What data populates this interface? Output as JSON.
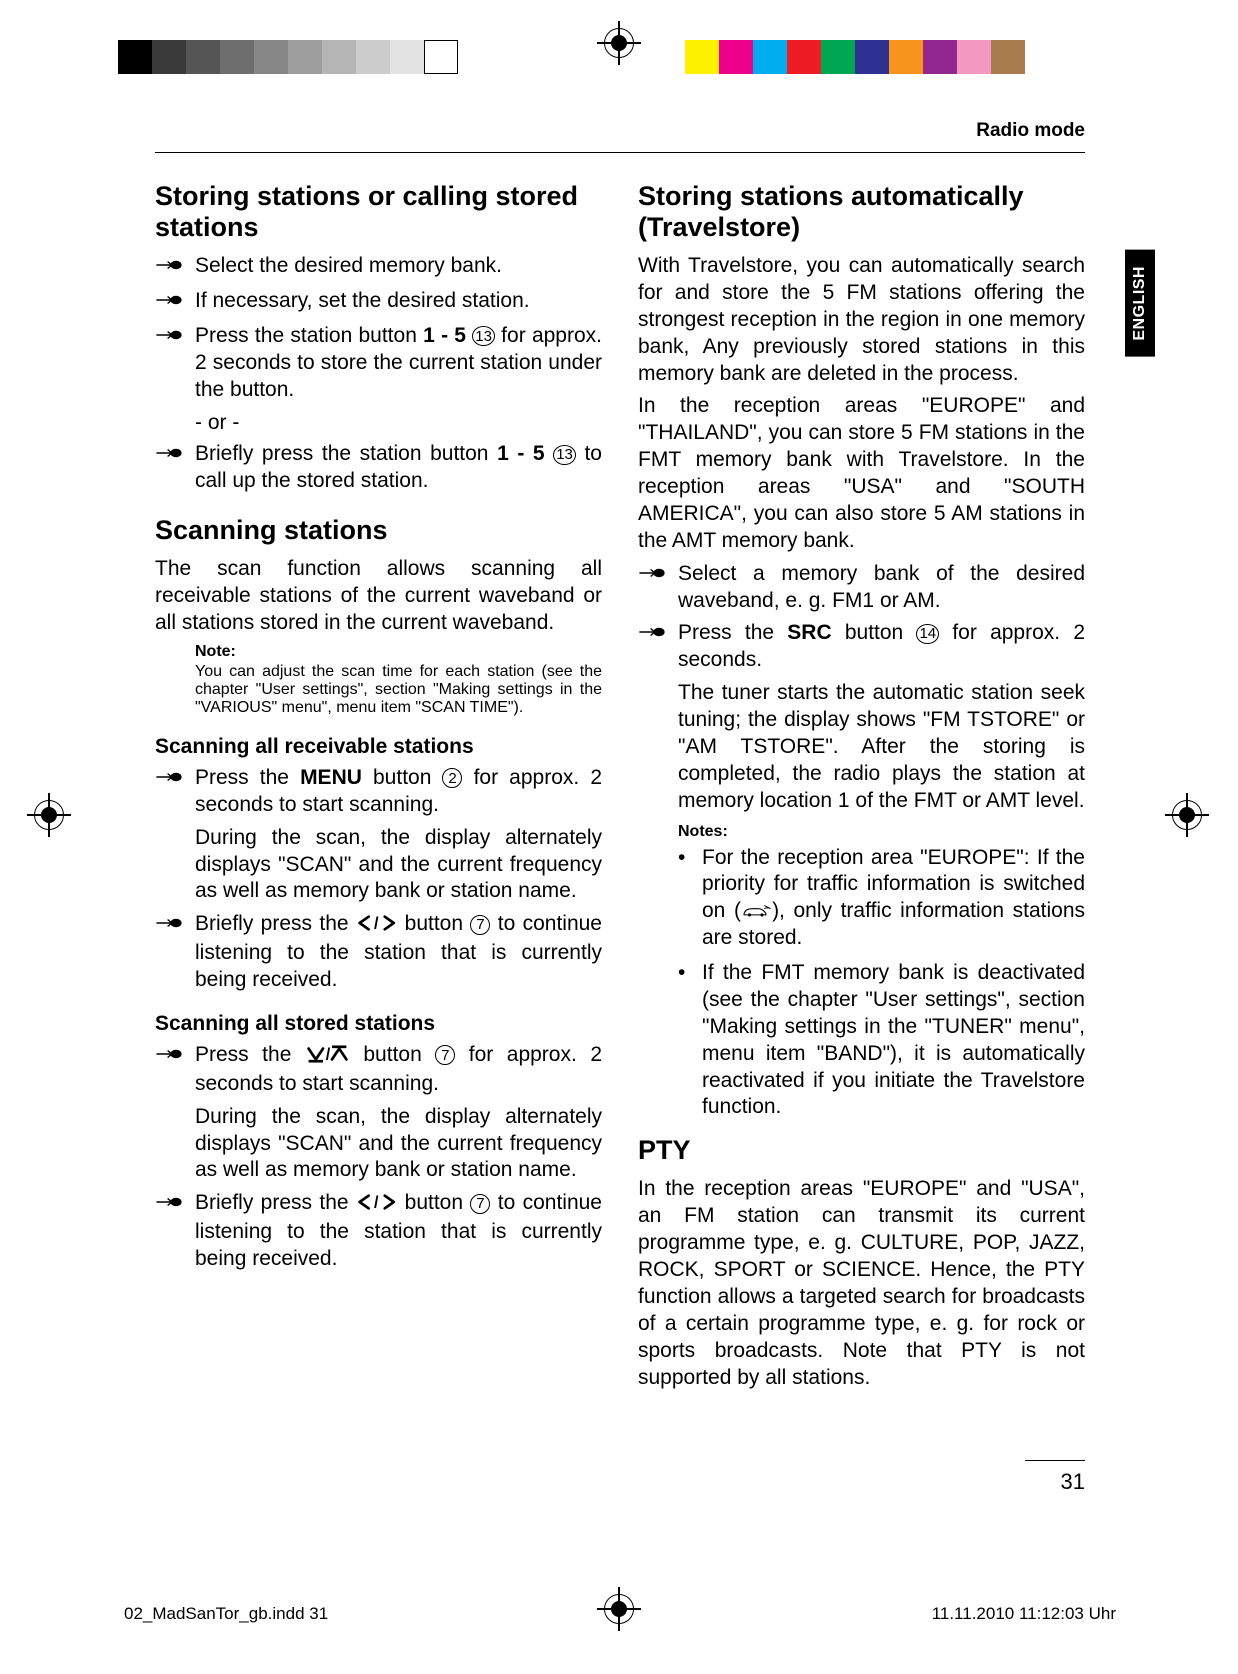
{
  "running_head": "Radio mode",
  "side_tab": "ENGLISH",
  "page_number": "31",
  "slug": {
    "file": "02_MadSanTor_gb.indd   31",
    "stamp": "11.11.2010   11:12:03 Uhr"
  },
  "colorbar_left": [
    "#000000",
    "#3a3a3a",
    "#555555",
    "#6e6e6e",
    "#878787",
    "#9e9e9e",
    "#b5b5b5",
    "#cccccc",
    "#e3e3e3",
    "#ffffff"
  ],
  "colorbar_right": [
    "#fff200",
    "#ec008c",
    "#00aeef",
    "#ed1c24",
    "#00a651",
    "#2e3192",
    "#f7941d",
    "#92278f",
    "#f49ac1",
    "#a97c50"
  ],
  "left": {
    "h_store": "Storing stations or calling stored stations",
    "store_items": [
      "Select the desired memory bank.",
      "If necessary, set the desired station."
    ],
    "store_press_a": "Press the station button ",
    "store_press_b": " for approx. 2 seconds to store the current station under the button.",
    "btn_range": "1 - 5",
    "ref13": "13",
    "or": "- or -",
    "store_call_a": "Briefly press the station button ",
    "store_call_b": " to call up the stored station.",
    "h_scan": "Scanning stations",
    "scan_intro": "The scan function allows scanning all receivable stations of the current waveband or all stations stored in the current waveband.",
    "note_label": "Note:",
    "scan_note": "You can adjust the scan time for each station (see the chapter \"User settings\", section \"Making settings in the \"VARIOUS\" menu\", menu item \"SCAN TIME\").",
    "h_scan_all": "Scanning all receivable stations",
    "scan_all_press_a": "Press the ",
    "scan_all_press_menu": "MENU",
    "scan_all_press_b": " button ",
    "ref2": "2",
    "scan_all_press_c": " for approx. 2 seconds to start scanning.",
    "scan_during": "During the scan, the display alternately displays \"SCAN\" and the current frequency as well as memory bank or station name.",
    "scan_brief_a": "Briefly press the ",
    "ref7": "7",
    "scan_brief_b": " button ",
    "scan_brief_c": " to continue listening to the station that is currently being received.",
    "h_scan_stored": "Scanning all stored stations",
    "scan_stored_press_a": "Press the ",
    "scan_stored_press_b": " button ",
    "scan_stored_press_c": " for approx. 2 seconds to start scanning."
  },
  "right": {
    "h_ts": "Storing stations automatically (Travelstore)",
    "ts_p1": "With Travelstore, you can automatically search for and store the 5 FM stations offering the strongest reception in the region in one memory bank, Any previously stored stations in this memory bank are deleted in the process.",
    "ts_p2": "In the reception areas \"EUROPE\" and \"THAILAND\", you can store 5 FM stations in the FMT memory bank with Travelstore. In the reception areas \"USA\" and \"SOUTH AMERICA\", you can also store 5 AM stations in the AMT memory bank.",
    "ts_sel": "Select a memory bank of the desired waveband, e. g. FM1 or AM.",
    "ts_src_a": "Press the ",
    "ts_src_label": "SRC",
    "ts_src_b": " button ",
    "ref14": "14",
    "ts_src_c": " for approx. 2 seconds.",
    "ts_result": "The tuner starts the automatic station seek tuning; the display shows \"FM TSTORE\" or \"AM TSTORE\". After the storing is completed, the radio plays the station at memory location 1 of the FMT or AMT level.",
    "notes_label": "Notes:",
    "note1_a": "For the reception area \"EUROPE\": If the priority for traffic information is switched on (",
    "note1_b": "), only traffic information stations are stored.",
    "note2": "If the FMT memory bank is deactivated (see the chapter \"User settings\", section \"Making settings in the \"TUNER\" menu\", menu item \"BAND\"), it is automatically reactivated if you initiate the Travelstore function.",
    "h_pty": "PTY",
    "pty_p": "In the reception areas \"EUROPE\" and \"USA\", an FM station can transmit its current programme type, e. g. CULTURE, POP, JAZZ, ROCK, SPORT or SCIENCE. Hence, the PTY function allows a targeted search for broadcasts of a certain programme type, e. g. for rock or sports broadcasts. Note that PTY is not supported by all stations."
  }
}
